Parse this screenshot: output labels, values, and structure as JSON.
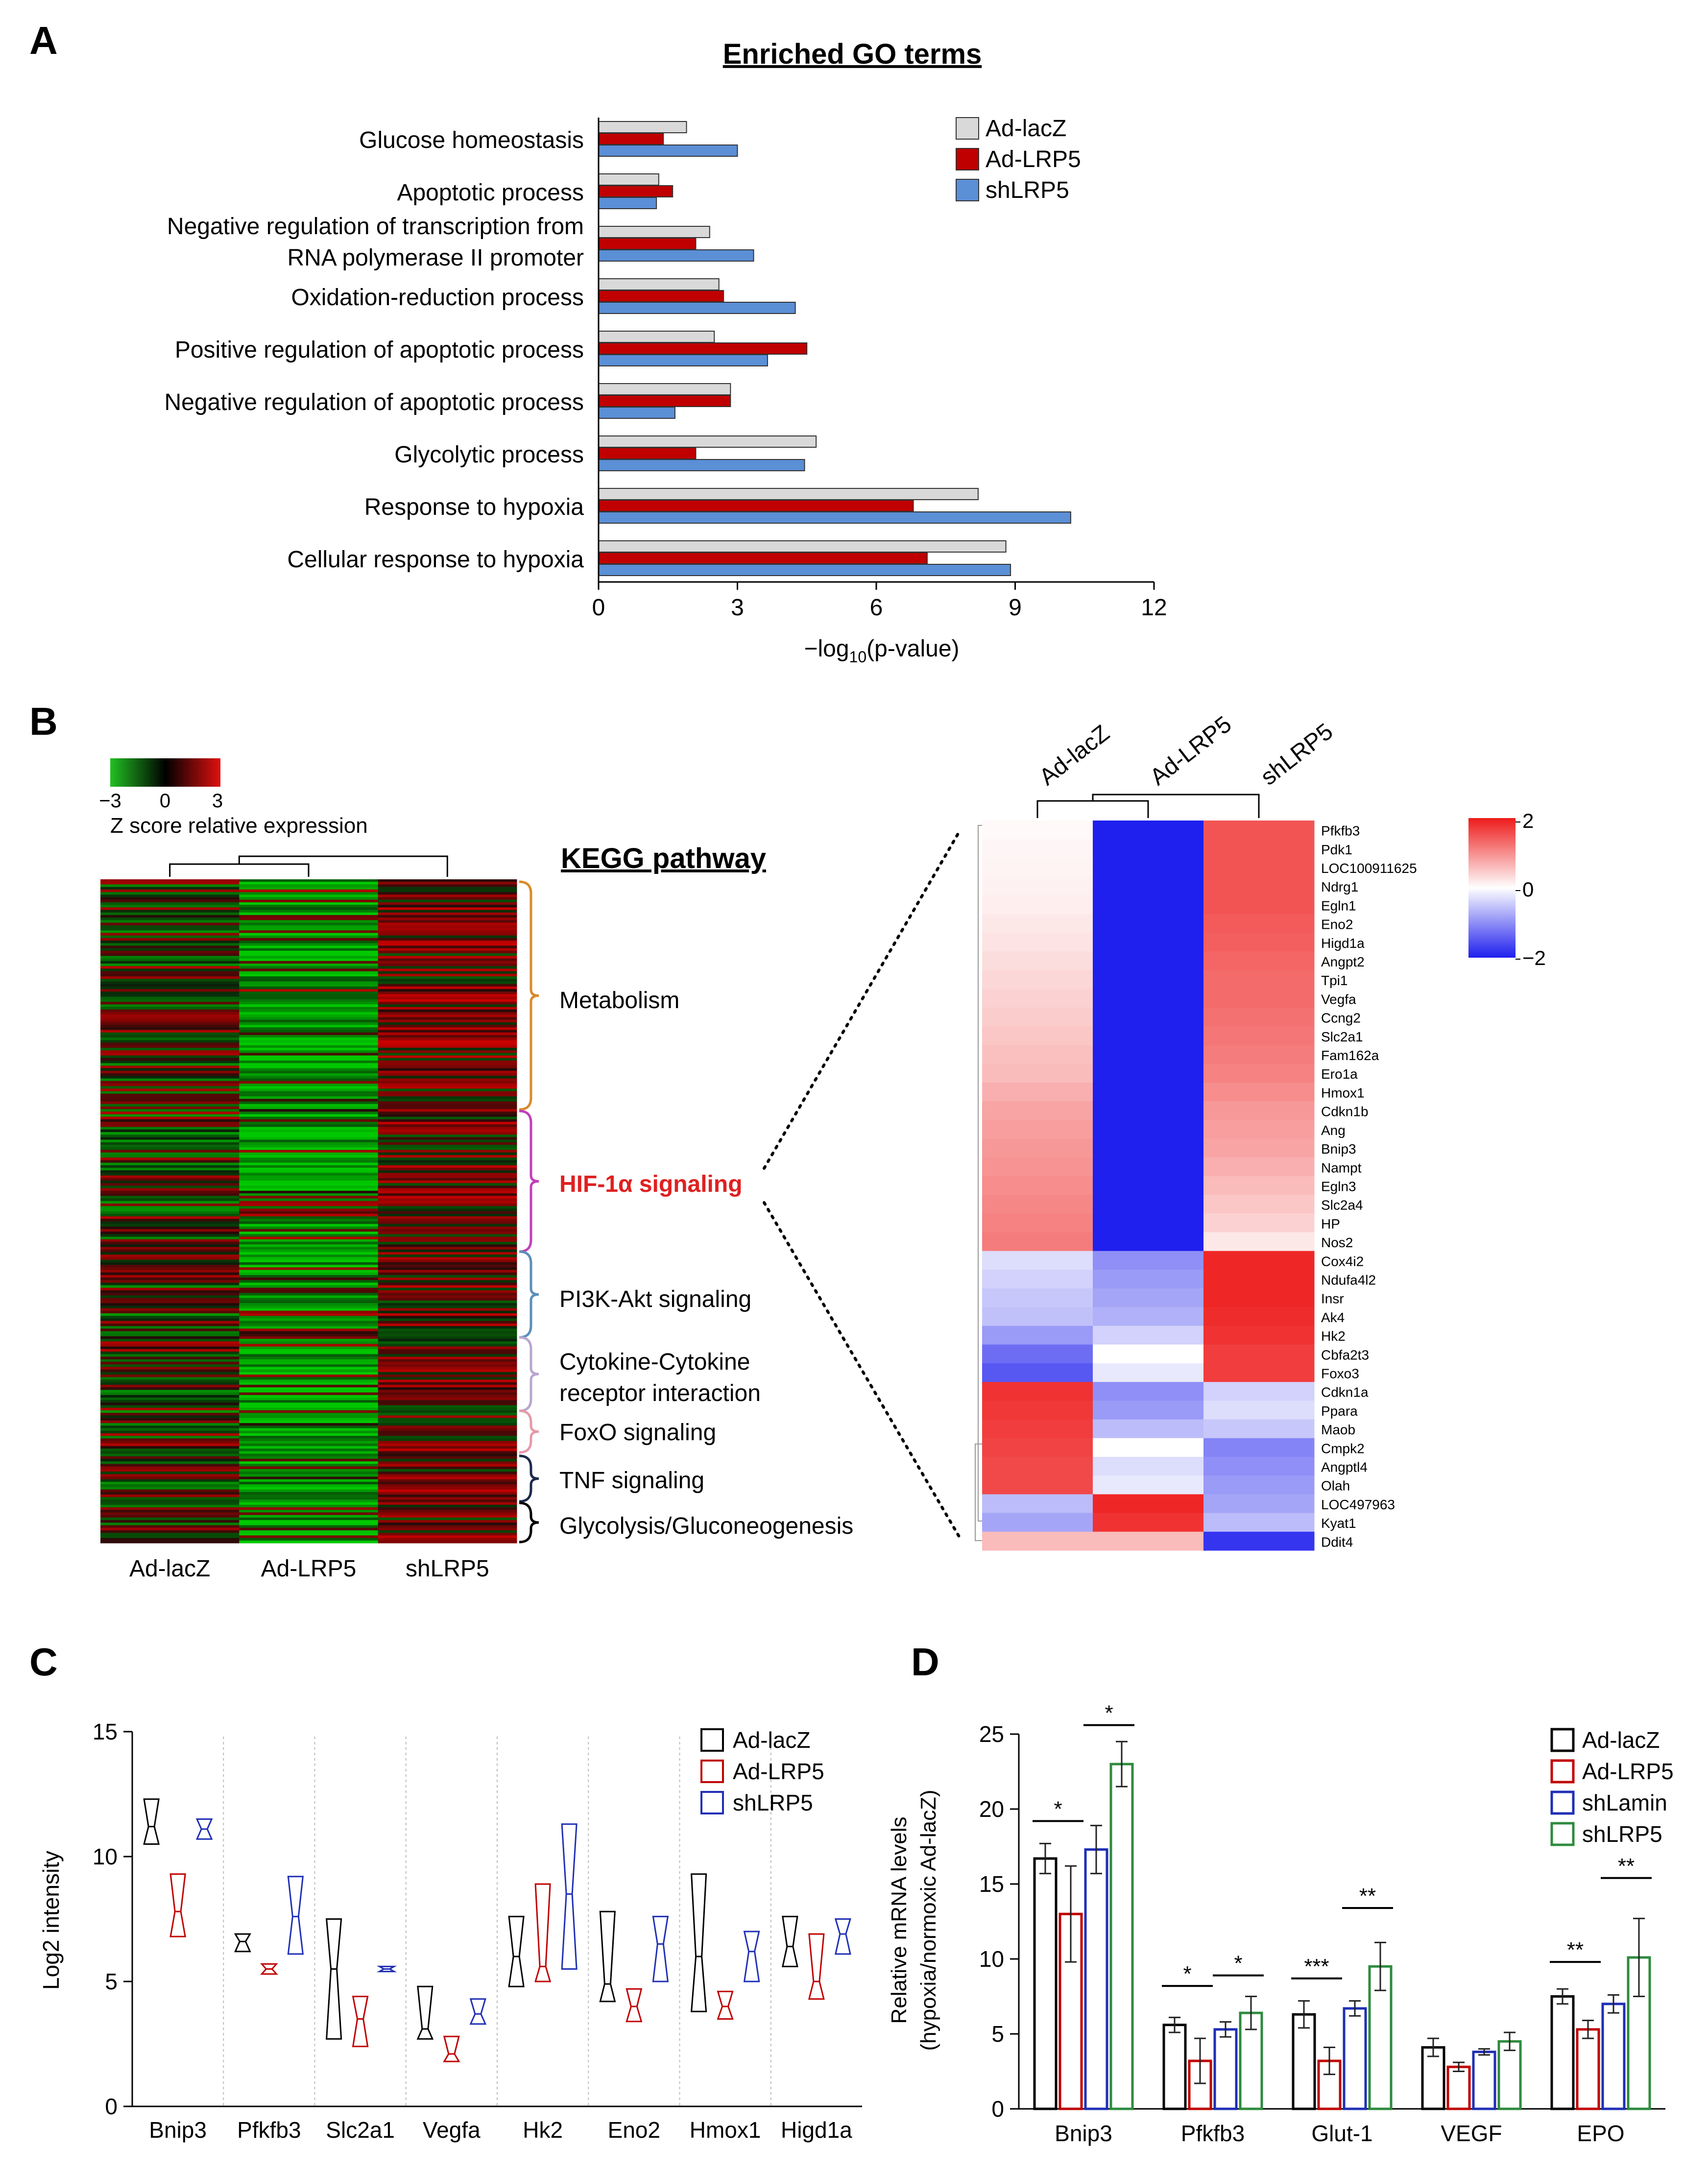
{
  "panel_labels": {
    "a": "A",
    "b": "B",
    "c": "C",
    "d": "D"
  },
  "colors": {
    "lacz_bar": "#d9d9d9",
    "lrp5_bar": "#c00000",
    "sh_bar": "#5b8fd6",
    "lacz_line": "#000000",
    "lrp5_line": "#c00000",
    "shlamin_line": "#1f2fb5",
    "sh_line": "#2e8b3e",
    "hif_red": "#e02020",
    "bracket_metabolism": "#d98a2b",
    "bracket_hif": "#c13fb8",
    "bracket_pi3k": "#5b8fb8",
    "bracket_cytokine": "#b8a6cf",
    "bracket_foxo": "#e59aa8",
    "bracket_tnf": "#1b2a4a",
    "bracket_gly": "#000000"
  },
  "chart_data": [
    {
      "id": "A",
      "type": "bar",
      "orientation": "horizontal",
      "title": "Enriched GO terms",
      "xlabel": "−log10(p-value)",
      "xlabel_main": "−log",
      "xlabel_sub": "10",
      "xlabel_tail": "(p-value)",
      "xlim": [
        0,
        12
      ],
      "xticks": [
        "0",
        "3",
        "6",
        "9",
        "12"
      ],
      "categories": [
        [
          "Glucose  homeostasis"
        ],
        [
          "Apoptotic  process"
        ],
        [
          "Negative  regulation  of  transcription  from",
          "RNA  polymerase  II  promoter"
        ],
        [
          "Oxidation-reduction  process"
        ],
        [
          "Positive  regulation  of  apoptotic  process"
        ],
        [
          "Negative  regulation  of  apoptotic  process"
        ],
        [
          "Glycolytic  process"
        ],
        [
          "Response  to  hypoxia"
        ],
        [
          "Cellular  response  to  hypoxia"
        ]
      ],
      "series": [
        {
          "name": "Ad-lacZ",
          "values": [
            1.9,
            1.3,
            2.4,
            2.6,
            2.5,
            2.85,
            4.7,
            8.2,
            8.8
          ]
        },
        {
          "name": "Ad-LRP5",
          "values": [
            1.4,
            1.6,
            2.1,
            2.7,
            4.5,
            2.85,
            2.1,
            6.8,
            7.1
          ]
        },
        {
          "name": "shLRP5",
          "values": [
            3.0,
            1.25,
            3.35,
            4.25,
            3.65,
            1.65,
            4.45,
            10.2,
            8.9
          ]
        }
      ]
    },
    {
      "id": "B-left",
      "type": "heatmap",
      "colorbar_label": "Z score relative expression",
      "colorbar_ticks": [
        "−3",
        "0",
        "3"
      ],
      "columns": [
        "Ad-lacZ",
        "Ad-LRP5",
        "shLRP5"
      ],
      "title": "KEGG pathway",
      "pathways": [
        "Metabolism",
        "HIF-1α signaling",
        "PI3K-Akt signaling",
        "Cytokine-Cytokine",
        "receptor interaction",
        "FoxO  signaling",
        "TNF  signaling",
        "Glycolysis/Gluconeogenesis"
      ]
    },
    {
      "id": "B-right",
      "type": "heatmap",
      "columns": [
        "Ad-lacZ",
        "Ad-LRP5",
        "shLRP5"
      ],
      "colorbar_ticks": [
        "2",
        "0",
        "−2"
      ],
      "zlim": [
        -2,
        2
      ],
      "genes": [
        "Pfkfb3",
        "Pdk1",
        "LOC100911625",
        "Ndrg1",
        "Egln1",
        "Eno2",
        "Higd1a",
        "Angpt2",
        "Tpi1",
        "Vegfa",
        "Ccng2",
        "Slc2a1",
        "Fam162a",
        "Ero1a",
        "Hmox1",
        "Cdkn1b",
        "Ang",
        "Bnip3",
        "Nampt",
        "Egln3",
        "Slc2a4",
        "HP",
        "Nos2",
        "Cox4i2",
        "Ndufa4l2",
        "Insr",
        "Ak4",
        "Hk2",
        "Cbfa2t3",
        "Foxo3",
        "Cdkn1a",
        "Ppara",
        "Maob",
        "Cmpk2",
        "Angptl4",
        "Olah",
        "LOC497963",
        "Kyat1",
        "Ddit4"
      ],
      "values": [
        [
          0.05,
          -2,
          1.5
        ],
        [
          0.08,
          -2,
          1.5
        ],
        [
          0.1,
          -2,
          1.5
        ],
        [
          0.12,
          -2,
          1.5
        ],
        [
          0.15,
          -2,
          1.5
        ],
        [
          0.2,
          -2,
          1.45
        ],
        [
          0.25,
          -2,
          1.4
        ],
        [
          0.3,
          -2,
          1.35
        ],
        [
          0.35,
          -2,
          1.3
        ],
        [
          0.4,
          -2,
          1.3
        ],
        [
          0.45,
          -2,
          1.25
        ],
        [
          0.5,
          -2,
          1.2
        ],
        [
          0.55,
          -2,
          1.15
        ],
        [
          0.6,
          -2,
          1.1
        ],
        [
          0.7,
          -2,
          1.0
        ],
        [
          0.8,
          -2,
          0.9
        ],
        [
          0.85,
          -2,
          0.85
        ],
        [
          0.9,
          -2,
          0.8
        ],
        [
          0.95,
          -2,
          0.7
        ],
        [
          1.0,
          -2,
          0.6
        ],
        [
          1.05,
          -2,
          0.5
        ],
        [
          1.1,
          -2,
          0.4
        ],
        [
          1.15,
          -2,
          0.2
        ],
        [
          -0.3,
          -1.0,
          1.9
        ],
        [
          -0.4,
          -0.9,
          1.9
        ],
        [
          -0.5,
          -0.8,
          1.9
        ],
        [
          -0.55,
          -0.7,
          1.85
        ],
        [
          -0.9,
          -0.4,
          1.8
        ],
        [
          -1.3,
          0.0,
          1.7
        ],
        [
          -1.5,
          -0.2,
          1.7
        ],
        [
          1.8,
          -1.0,
          -0.4
        ],
        [
          1.75,
          -0.9,
          -0.3
        ],
        [
          1.7,
          -0.6,
          -0.5
        ],
        [
          1.65,
          0.0,
          -1.1
        ],
        [
          1.6,
          -0.3,
          -1.0
        ],
        [
          1.6,
          -0.2,
          -0.9
        ],
        [
          -0.6,
          1.9,
          -0.8
        ],
        [
          -0.8,
          1.8,
          -0.6
        ],
        [
          0.6,
          0.6,
          -1.8
        ]
      ]
    },
    {
      "id": "C",
      "type": "box",
      "ylabel": "Log2 intensity",
      "ylim": [
        0,
        15
      ],
      "yticks": [
        "0",
        "5",
        "10",
        "15"
      ],
      "categories": [
        "Bnip3",
        "Pfkfb3",
        "Slc2a1",
        "Vegfa",
        "Hk2",
        "Eno2",
        "Hmox1",
        "Higd1a"
      ],
      "series": [
        {
          "name": "Ad-lacZ",
          "boxes": [
            [
              10.5,
              11.2,
              12.3
            ],
            [
              6.2,
              6.6,
              6.9
            ],
            [
              2.7,
              5.5,
              7.5
            ],
            [
              2.7,
              3.1,
              4.8
            ],
            [
              4.8,
              6.0,
              7.6
            ],
            [
              4.2,
              4.9,
              7.8
            ],
            [
              3.8,
              6.0,
              9.3
            ],
            [
              5.6,
              6.4,
              7.6
            ]
          ]
        },
        {
          "name": "Ad-LRP5",
          "boxes": [
            [
              6.8,
              7.8,
              9.3
            ],
            [
              5.3,
              5.5,
              5.7
            ],
            [
              2.4,
              3.5,
              4.4
            ],
            [
              1.8,
              2.1,
              2.8
            ],
            [
              5.0,
              5.6,
              8.9
            ],
            [
              3.4,
              4.0,
              4.7
            ],
            [
              3.5,
              4.0,
              4.6
            ],
            [
              4.3,
              5.0,
              6.9
            ]
          ]
        },
        {
          "name": "shLRP5",
          "boxes": [
            [
              10.7,
              11.1,
              11.5
            ],
            [
              6.1,
              7.6,
              9.2
            ],
            [
              5.4,
              5.5,
              5.6
            ],
            [
              3.3,
              3.7,
              4.3
            ],
            [
              5.5,
              8.5,
              11.3
            ],
            [
              5.0,
              6.5,
              7.6
            ],
            [
              5.0,
              6.2,
              7.0
            ],
            [
              6.1,
              6.9,
              7.5
            ]
          ]
        }
      ]
    },
    {
      "id": "D",
      "type": "bar",
      "ylabel": "Relative  mRNA  levels",
      "ylabel2": "(hypoxia/normoxic  Ad-lacZ)",
      "ylim": [
        0,
        25
      ],
      "yticks": [
        "0",
        "5",
        "10",
        "15",
        "20",
        "25"
      ],
      "categories": [
        "Bnip3",
        "Pfkfb3",
        "Glut-1",
        "VEGF",
        "EPO"
      ],
      "series": [
        {
          "name": "Ad-lacZ",
          "values": [
            16.7,
            5.6,
            6.3,
            4.1,
            7.5
          ],
          "errors": [
            1.0,
            0.5,
            0.9,
            0.6,
            0.5
          ]
        },
        {
          "name": "Ad-LRP5",
          "values": [
            13.0,
            3.2,
            3.2,
            2.8,
            5.3
          ],
          "errors": [
            3.2,
            1.5,
            0.9,
            0.3,
            0.6
          ]
        },
        {
          "name": "shLamin",
          "values": [
            17.3,
            5.3,
            6.7,
            3.8,
            7.0
          ],
          "errors": [
            1.6,
            0.5,
            0.5,
            0.2,
            0.6
          ]
        },
        {
          "name": "shLRP5",
          "values": [
            23.0,
            6.4,
            9.5,
            4.5,
            10.1
          ],
          "errors": [
            1.5,
            1.1,
            1.6,
            0.6,
            2.6
          ]
        }
      ],
      "significance": [
        {
          "cat": 0,
          "from": 0,
          "to": 1,
          "label": "*",
          "y": 19.2
        },
        {
          "cat": 0,
          "from": 2,
          "to": 3,
          "label": "*",
          "y": 25.6
        },
        {
          "cat": 1,
          "from": 0,
          "to": 1,
          "label": "*",
          "y": 8.2
        },
        {
          "cat": 1,
          "from": 2,
          "to": 3,
          "label": "*",
          "y": 8.9
        },
        {
          "cat": 2,
          "from": 0,
          "to": 1,
          "label": "***",
          "y": 8.7
        },
        {
          "cat": 2,
          "from": 2,
          "to": 3,
          "label": "**",
          "y": 13.4
        },
        {
          "cat": 4,
          "from": 0,
          "to": 1,
          "label": "**",
          "y": 9.8
        },
        {
          "cat": 4,
          "from": 2,
          "to": 3,
          "label": "**",
          "y": 15.4
        }
      ]
    }
  ]
}
